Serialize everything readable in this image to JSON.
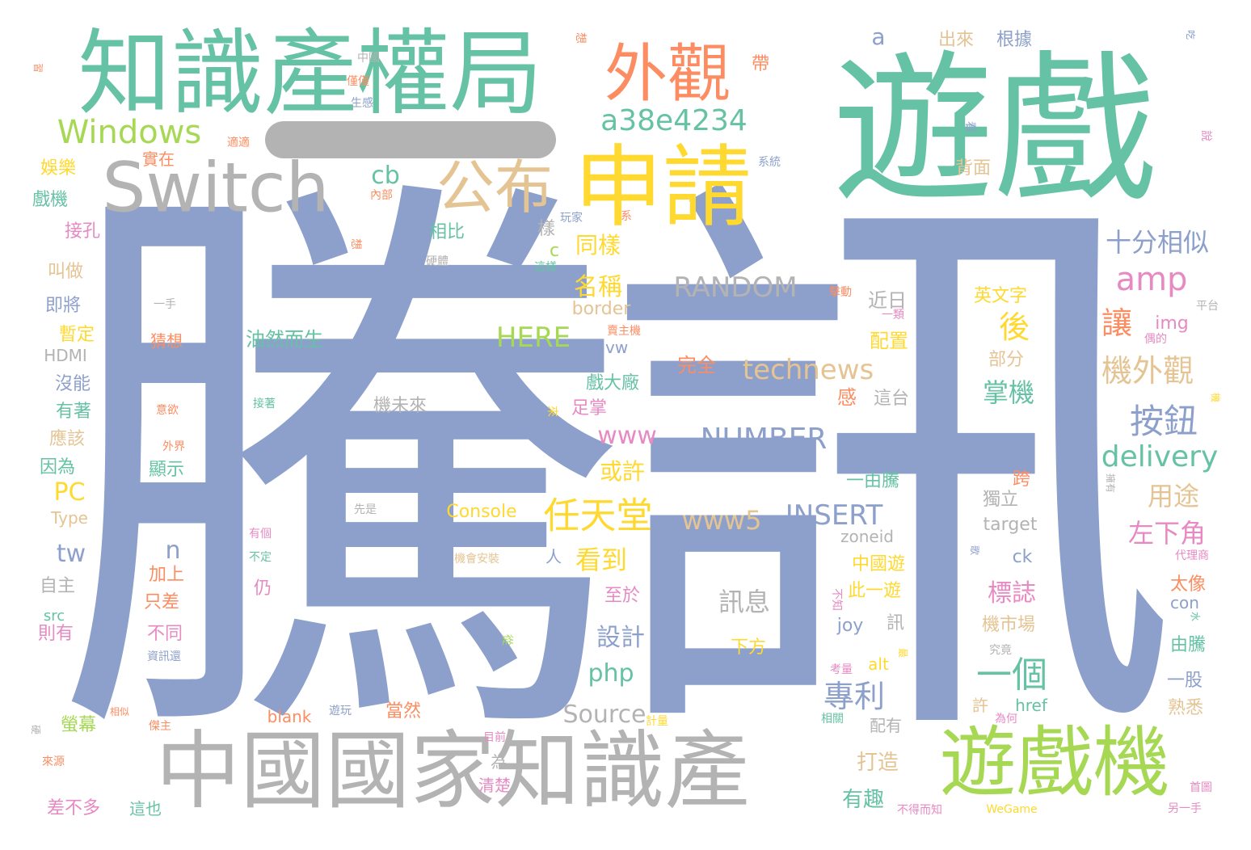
{
  "palette": {
    "teal": "#66c2a5",
    "periwinkle": "#8da0cb",
    "gray": "#b3b3b3",
    "yellow": "#ffd92f",
    "orange": "#fc8d62",
    "green": "#a6d854",
    "tan": "#e5c494",
    "pink": "#e78ac3"
  },
  "words": [
    {
      "id": "tengxun",
      "text": "騰訊",
      "color": "peri",
      "size": 720
    },
    {
      "id": "youxi",
      "text": "遊戲",
      "color": "teal",
      "size": 200
    },
    {
      "id": "zhishichan-quanju",
      "text": "知識產權局",
      "color": "teal",
      "size": 115
    },
    {
      "id": "zhongguo-guojia-zhishichan",
      "text": "中國國家知識產",
      "color": "gray",
      "size": 105
    },
    {
      "id": "youxiji",
      "text": "遊戲機",
      "color": "green",
      "size": 95
    },
    {
      "id": "shenqing",
      "text": "申請",
      "color": "yellow",
      "size": 110
    },
    {
      "id": "switch",
      "text": "Switch",
      "color": "gray",
      "size": 85
    },
    {
      "id": "waiguan",
      "text": "外觀",
      "color": "orange",
      "size": 78
    },
    {
      "id": "gongbu",
      "text": "公布",
      "color": "tan",
      "size": 72
    },
    {
      "id": "windows",
      "text": "Windows",
      "color": "green",
      "size": 40
    },
    {
      "id": "a38e4234",
      "text": "a38e4234",
      "color": "teal",
      "size": 36
    },
    {
      "id": "rentiantang",
      "text": "任天堂",
      "color": "yellow",
      "size": 45
    },
    {
      "id": "anniu",
      "text": "按鈕",
      "color": "peri",
      "size": 42
    },
    {
      "id": "yige",
      "text": "一個",
      "color": "teal",
      "size": 44
    },
    {
      "id": "zhuanli",
      "text": "專利",
      "color": "peri",
      "size": 38
    },
    {
      "id": "amp",
      "text": "amp",
      "color": "pink",
      "size": 40
    },
    {
      "id": "jiwaiguan",
      "text": "機外觀",
      "color": "tan",
      "size": 38
    },
    {
      "id": "shifen-xiangsi",
      "text": "十分相似",
      "color": "peri",
      "size": 32
    },
    {
      "id": "delivery",
      "text": "delivery",
      "color": "teal",
      "size": 36
    },
    {
      "id": "technews",
      "text": "technews",
      "color": "tan",
      "size": 34
    },
    {
      "id": "number",
      "text": "NUMBER",
      "color": "peri",
      "size": 36
    },
    {
      "id": "random",
      "text": "RANDOM",
      "color": "gray",
      "size": 34
    },
    {
      "id": "insert",
      "text": "INSERT",
      "color": "peri",
      "size": 34
    },
    {
      "id": "here",
      "text": "HERE",
      "color": "green",
      "size": 34
    },
    {
      "id": "www",
      "text": "www",
      "color": "pink",
      "size": 30
    },
    {
      "id": "www5",
      "text": "www5",
      "color": "tan",
      "size": 32
    },
    {
      "id": "source",
      "text": "Source",
      "color": "gray",
      "size": 30
    },
    {
      "id": "php",
      "text": "php",
      "color": "teal",
      "size": 30
    },
    {
      "id": "tw",
      "text": "tw",
      "color": "peri",
      "size": 30
    },
    {
      "id": "pc",
      "text": "PC",
      "color": "yellow",
      "size": 30
    },
    {
      "id": "n",
      "text": "n",
      "color": "peri",
      "size": 30
    },
    {
      "id": "cb",
      "text": "cb",
      "color": "teal",
      "size": 30
    },
    {
      "id": "a",
      "text": "a",
      "color": "peri",
      "size": 28
    },
    {
      "id": "rang",
      "text": "讓",
      "color": "orange",
      "size": 38
    },
    {
      "id": "hou",
      "text": "後",
      "color": "yellow",
      "size": 38
    },
    {
      "id": "zhangji",
      "text": "掌機",
      "color": "teal",
      "size": 32
    },
    {
      "id": "yongtu",
      "text": "用途",
      "color": "tan",
      "size": 32
    },
    {
      "id": "zuoxiajiao",
      "text": "左下角",
      "color": "pink",
      "size": 32
    },
    {
      "id": "biaozhi",
      "text": "標誌",
      "color": "pink",
      "size": 30
    },
    {
      "id": "kandao",
      "text": "看到",
      "color": "yellow",
      "size": 32
    },
    {
      "id": "mingcheng",
      "text": "名稱",
      "color": "yellow",
      "size": 30
    },
    {
      "id": "tongyang",
      "text": "同樣",
      "color": "yellow",
      "size": 28
    },
    {
      "id": "huoxu",
      "text": "或許",
      "color": "yellow",
      "size": 28
    },
    {
      "id": "sheji",
      "text": "設計",
      "color": "peri",
      "size": 30
    },
    {
      "id": "xunxi",
      "text": "訊息",
      "color": "gray",
      "size": 32
    },
    {
      "id": "xiafang",
      "text": "下方",
      "color": "yellow",
      "size": 22
    },
    {
      "id": "xiaodachang",
      "text": "戲大廠",
      "color": "teal",
      "size": 22
    },
    {
      "id": "zuzhang",
      "text": "足掌",
      "color": "pink",
      "size": 22
    },
    {
      "id": "youran-ersheng",
      "text": "油然而生",
      "color": "teal",
      "size": 24
    },
    {
      "id": "xiangbi",
      "text": "相比",
      "color": "teal",
      "size": 22
    },
    {
      "id": "c",
      "text": "c",
      "color": "green",
      "size": 22
    },
    {
      "id": "yang",
      "text": "樣",
      "color": "gray",
      "size": 22
    },
    {
      "id": "wanquan",
      "text": "完全",
      "color": "orange",
      "size": 24
    },
    {
      "id": "gan",
      "text": "感",
      "color": "orange",
      "size": 24
    },
    {
      "id": "jinri",
      "text": "近日",
      "color": "gray",
      "size": 24
    },
    {
      "id": "peizhi",
      "text": "配置",
      "color": "yellow",
      "size": 24
    },
    {
      "id": "zhetai",
      "text": "這台",
      "color": "gray",
      "size": 22
    },
    {
      "id": "yingwenzi",
      "text": "英文字",
      "color": "yellow",
      "size": 22
    },
    {
      "id": "img",
      "text": "img",
      "color": "pink",
      "size": 22
    },
    {
      "id": "bufen",
      "text": "部分",
      "color": "tan",
      "size": 22
    },
    {
      "id": "beimian",
      "text": "背面",
      "color": "tan",
      "size": 22
    },
    {
      "id": "chulai",
      "text": "出來",
      "color": "tan",
      "size": 22
    },
    {
      "id": "genju",
      "text": "根據",
      "color": "peri",
      "size": 22
    },
    {
      "id": "dai",
      "text": "帶",
      "color": "orange",
      "size": 22
    },
    {
      "id": "border",
      "text": "border",
      "color": "tan",
      "size": 22
    },
    {
      "id": "avw",
      "text": "avw",
      "color": "peri",
      "size": 20
    },
    {
      "id": "jiweilai",
      "text": "機未來",
      "color": "gray",
      "size": 22
    },
    {
      "id": "console",
      "text": "Console",
      "color": "yellow",
      "size": 22
    },
    {
      "id": "yiyouteng",
      "text": "一由騰",
      "color": "teal",
      "size": 22
    },
    {
      "id": "kua",
      "text": "跨",
      "color": "orange",
      "size": 22
    },
    {
      "id": "duli",
      "text": "獨立",
      "color": "gray",
      "size": 22
    },
    {
      "id": "target",
      "text": "target",
      "color": "gray",
      "size": 22
    },
    {
      "id": "zoneid",
      "text": "zoneid",
      "color": "gray",
      "size": 20
    },
    {
      "id": "zhongguoyou",
      "text": "中國遊",
      "color": "yellow",
      "size": 22
    },
    {
      "id": "ciyiyou",
      "text": "此一遊",
      "color": "yellow",
      "size": 22
    },
    {
      "id": "joy",
      "text": "joy",
      "color": "peri",
      "size": 22
    },
    {
      "id": "xun",
      "text": "訊",
      "color": "gray",
      "size": 22
    },
    {
      "id": "ck",
      "text": "ck",
      "color": "peri",
      "size": 22
    },
    {
      "id": "jishichang",
      "text": "機市場",
      "color": "tan",
      "size": 22
    },
    {
      "id": "taixiang",
      "text": "太像",
      "color": "orange",
      "size": 22
    },
    {
      "id": "con",
      "text": "con",
      "color": "peri",
      "size": 20
    },
    {
      "id": "youteng",
      "text": "由騰",
      "color": "teal",
      "size": 22
    },
    {
      "id": "yigu",
      "text": "一股",
      "color": "peri",
      "size": 22
    },
    {
      "id": "shuxi",
      "text": "熟悉",
      "color": "tan",
      "size": 22
    },
    {
      "id": "zhiyu",
      "text": "至於",
      "color": "pink",
      "size": 22
    },
    {
      "id": "reng",
      "text": "仍",
      "color": "pink",
      "size": 22
    },
    {
      "id": "ren",
      "text": "人",
      "color": "peri",
      "size": 20
    },
    {
      "id": "xu",
      "text": "許",
      "color": "tan",
      "size": 20
    },
    {
      "id": "href",
      "text": "href",
      "color": "teal",
      "size": 20
    },
    {
      "id": "peiyou",
      "text": "配有",
      "color": "gray",
      "size": 20
    },
    {
      "id": "alt",
      "text": "alt",
      "color": "yellow",
      "size": 20
    },
    {
      "id": "dazao",
      "text": "打造",
      "color": "tan",
      "size": 26
    },
    {
      "id": "youqu",
      "text": "有趣",
      "color": "teal",
      "size": 26
    },
    {
      "id": "dangran",
      "text": "當然",
      "color": "orange",
      "size": 22
    },
    {
      "id": "blank",
      "text": "blank",
      "color": "orange",
      "size": 20
    },
    {
      "id": "wei",
      "text": "為",
      "color": "gray",
      "size": 20
    },
    {
      "id": "qingchu",
      "text": "清楚",
      "color": "pink",
      "size": 20
    },
    {
      "id": "yule",
      "text": "娛樂",
      "color": "yellow",
      "size": 22
    },
    {
      "id": "zaishi",
      "text": "實在",
      "color": "orange",
      "size": 20
    },
    {
      "id": "xiji",
      "text": "戲機",
      "color": "teal",
      "size": 22
    },
    {
      "id": "jiekong",
      "text": "接孔",
      "color": "pink",
      "size": 22
    },
    {
      "id": "jiaozuo",
      "text": "叫做",
      "color": "tan",
      "size": 22
    },
    {
      "id": "jijiang",
      "text": "即將",
      "color": "peri",
      "size": 22
    },
    {
      "id": "zanding",
      "text": "暫定",
      "color": "yellow",
      "size": 22
    },
    {
      "id": "caixiang",
      "text": "猜想",
      "color": "orange",
      "size": 20
    },
    {
      "id": "hdmi",
      "text": "HDMI",
      "color": "gray",
      "size": 20
    },
    {
      "id": "meineng",
      "text": "沒能",
      "color": "peri",
      "size": 22
    },
    {
      "id": "youzhe",
      "text": "有著",
      "color": "teal",
      "size": 22
    },
    {
      "id": "yinggai",
      "text": "應該",
      "color": "tan",
      "size": 22
    },
    {
      "id": "yinwei",
      "text": "因為",
      "color": "teal",
      "size": 22
    },
    {
      "id": "xianshi",
      "text": "顯示",
      "color": "teal",
      "size": 22
    },
    {
      "id": "type",
      "text": "Type",
      "color": "tan",
      "size": 20
    },
    {
      "id": "zizhu",
      "text": "自主",
      "color": "gray",
      "size": 22
    },
    {
      "id": "jiashang",
      "text": "加上",
      "color": "orange",
      "size": 22
    },
    {
      "id": "zhicha",
      "text": "只差",
      "color": "orange",
      "size": 22
    },
    {
      "id": "src",
      "text": "src",
      "color": "teal",
      "size": 18
    },
    {
      "id": "zeyou",
      "text": "則有",
      "color": "pink",
      "size": 22
    },
    {
      "id": "butong",
      "text": "不同",
      "color": "pink",
      "size": 22
    },
    {
      "id": "yingmu",
      "text": "螢幕",
      "color": "green",
      "size": 22
    },
    {
      "id": "chabuduo",
      "text": "差不多",
      "color": "pink",
      "size": 22
    },
    {
      "id": "zheye",
      "text": "這也",
      "color": "teal",
      "size": 20
    },
    {
      "id": "zhongguo-small",
      "text": "中國",
      "color": "gray",
      "size": 14
    },
    {
      "id": "jinjin",
      "text": "僅僅",
      "color": "orange",
      "size": 14
    },
    {
      "id": "shenggan",
      "text": "生感",
      "color": "peri",
      "size": 14
    },
    {
      "id": "xiang-1",
      "text": "想",
      "color": "orange",
      "size": 14
    },
    {
      "id": "xi-small",
      "text": "習",
      "color": "orange",
      "size": 12
    },
    {
      "id": "chi",
      "text": "吃",
      "color": "peri",
      "size": 12
    },
    {
      "id": "xitong",
      "text": "系統",
      "color": "peri",
      "size": 14
    },
    {
      "id": "kan",
      "text": "看",
      "color": "peri",
      "size": 14
    },
    {
      "id": "shuo",
      "text": "說",
      "color": "pink",
      "size": 14
    },
    {
      "id": "shiyong",
      "text": "適適",
      "color": "orange",
      "size": 14
    },
    {
      "id": "neibu",
      "text": "內部",
      "color": "orange",
      "size": 14
    },
    {
      "id": "wanjia",
      "text": "玩家",
      "color": "peri",
      "size": 14
    },
    {
      "id": "xi2",
      "text": "系",
      "color": "orange",
      "size": 14
    },
    {
      "id": "xiang-2",
      "text": "想",
      "color": "orange",
      "size": 14
    },
    {
      "id": "yingti",
      "text": "硬體",
      "color": "gray",
      "size": 14
    },
    {
      "id": "zheyang",
      "text": "這樣",
      "color": "teal",
      "size": 14
    },
    {
      "id": "yishou",
      "text": "一手",
      "color": "gray",
      "size": 14
    },
    {
      "id": "shoudong",
      "text": "擊動",
      "color": "orange",
      "size": 14
    },
    {
      "id": "yikuan",
      "text": "一類",
      "color": "pink",
      "size": 14
    },
    {
      "id": "maizhu",
      "text": "賣主機",
      "color": "orange",
      "size": 14
    },
    {
      "id": "pingtai",
      "text": "平台",
      "color": "gray",
      "size": 14
    },
    {
      "id": "ouxiang",
      "text": "偶的",
      "color": "pink",
      "size": 14
    },
    {
      "id": "yiyu",
      "text": "意欲",
      "color": "orange",
      "size": 14
    },
    {
      "id": "jiezhe",
      "text": "接著",
      "color": "teal",
      "size": 14
    },
    {
      "id": "lai",
      "text": "來",
      "color": "yellow",
      "size": 14
    },
    {
      "id": "waijie",
      "text": "外界",
      "color": "orange",
      "size": 14
    },
    {
      "id": "xianshi2",
      "text": "先是",
      "color": "gray",
      "size": 14
    },
    {
      "id": "youge",
      "text": "有個",
      "color": "pink",
      "size": 14
    },
    {
      "id": "buding",
      "text": "不定",
      "color": "teal",
      "size": 14
    },
    {
      "id": "jihuianzhuang",
      "text": "機會安裝",
      "color": "tan",
      "size": 14
    },
    {
      "id": "ge",
      "text": "歌",
      "color": "peri",
      "size": 12
    },
    {
      "id": "dailishang",
      "text": "代理商",
      "color": "pink",
      "size": 14
    },
    {
      "id": "ji2",
      "text": "機",
      "color": "yellow",
      "size": 12
    },
    {
      "id": "yongyou",
      "text": "擁有",
      "color": "gray",
      "size": 12
    },
    {
      "id": "buzhi",
      "text": "不知",
      "color": "pink",
      "size": 14
    },
    {
      "id": "jiujing",
      "text": "究竟",
      "color": "gray",
      "size": 14
    },
    {
      "id": "kaoliang",
      "text": "考量",
      "color": "pink",
      "size": 14
    },
    {
      "id": "zui",
      "text": "最",
      "color": "yellow",
      "size": 12
    },
    {
      "id": "weihe",
      "text": "為何",
      "color": "pink",
      "size": 14
    },
    {
      "id": "xiangguan",
      "text": "相關",
      "color": "teal",
      "size": 14
    },
    {
      "id": "bude-erzhi",
      "text": "不得而知",
      "color": "pink",
      "size": 14
    },
    {
      "id": "wegame",
      "text": "WeGame",
      "color": "yellow",
      "size": 14
    },
    {
      "id": "shui",
      "text": "水",
      "color": "teal",
      "size": 12
    },
    {
      "id": "shouhua",
      "text": "首圖",
      "color": "pink",
      "size": 14
    },
    {
      "id": "lingyishou",
      "text": "另一手",
      "color": "pink",
      "size": 14
    },
    {
      "id": "cong",
      "text": "從",
      "color": "green",
      "size": 14
    },
    {
      "id": "zixunjian",
      "text": "資訊還",
      "color": "peri",
      "size": 14
    },
    {
      "id": "jisuan",
      "text": "計量",
      "color": "yellow",
      "size": 14
    },
    {
      "id": "youwan",
      "text": "遊玩",
      "color": "peri",
      "size": 14
    },
    {
      "id": "mubiao",
      "text": "目前",
      "color": "pink",
      "size": 14
    },
    {
      "id": "xiangsi",
      "text": "相似",
      "color": "orange",
      "size": 12
    },
    {
      "id": "kazhu",
      "text": "傑主",
      "color": "orange",
      "size": 14
    },
    {
      "id": "ying2",
      "text": "硬",
      "color": "gray",
      "size": 12
    },
    {
      "id": "laiyuan",
      "text": "來源",
      "color": "orange",
      "size": 14
    }
  ]
}
